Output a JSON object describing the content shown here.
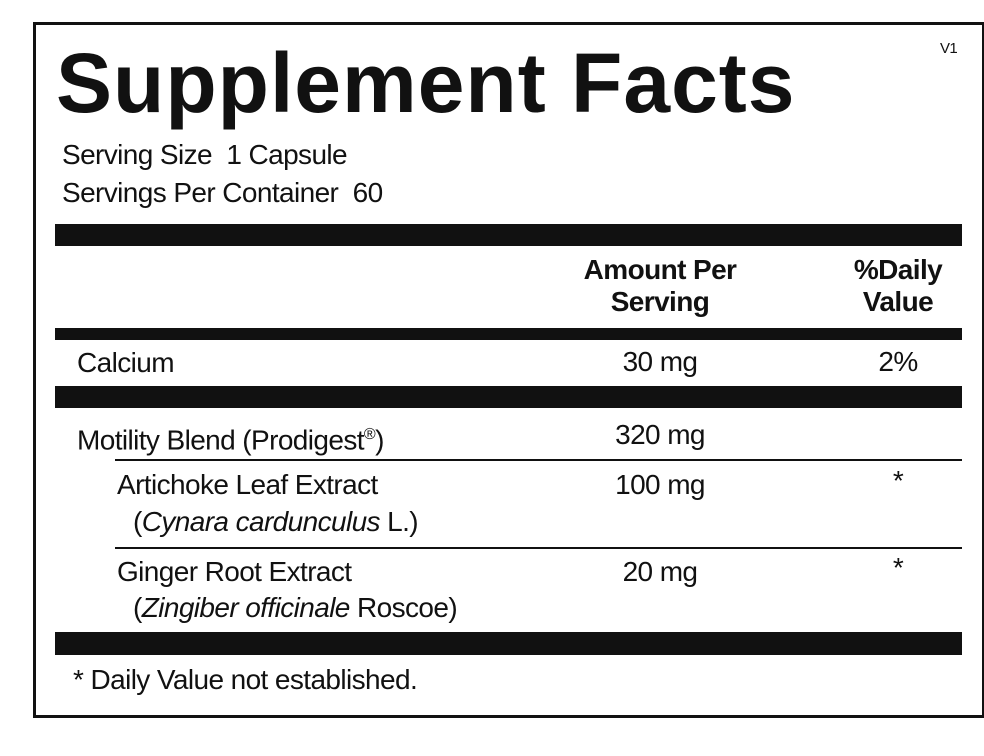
{
  "label": {
    "title": "Supplement Facts",
    "version": "V1",
    "serving_size": "Serving Size  1 Capsule",
    "servings_per_container": "Servings Per Container  60",
    "header": {
      "amount": "Amount Per Serving",
      "daily_value": "%Daily Value"
    },
    "rows": [
      {
        "name": "Calcium",
        "amount": "30 mg",
        "dv": "2%"
      },
      {
        "name": {
          "text": "Motility Blend (Prodigest",
          "sup": "®",
          "tail": ")"
        },
        "amount": "320 mg"
      },
      {
        "name": "Artichoke Leaf Extract",
        "latin": {
          "prefix": "(",
          "italic": "Cynara cardunculus",
          "suffix": " L.)"
        },
        "amount": "100 mg",
        "dv": "*"
      },
      {
        "name": "Ginger Root Extract",
        "latin": {
          "prefix": "(",
          "italic": "Zingiber officinale",
          "suffix": " Roscoe)"
        },
        "amount": "20 mg",
        "dv": "*"
      }
    ],
    "footnote": "* Daily Value not established."
  }
}
